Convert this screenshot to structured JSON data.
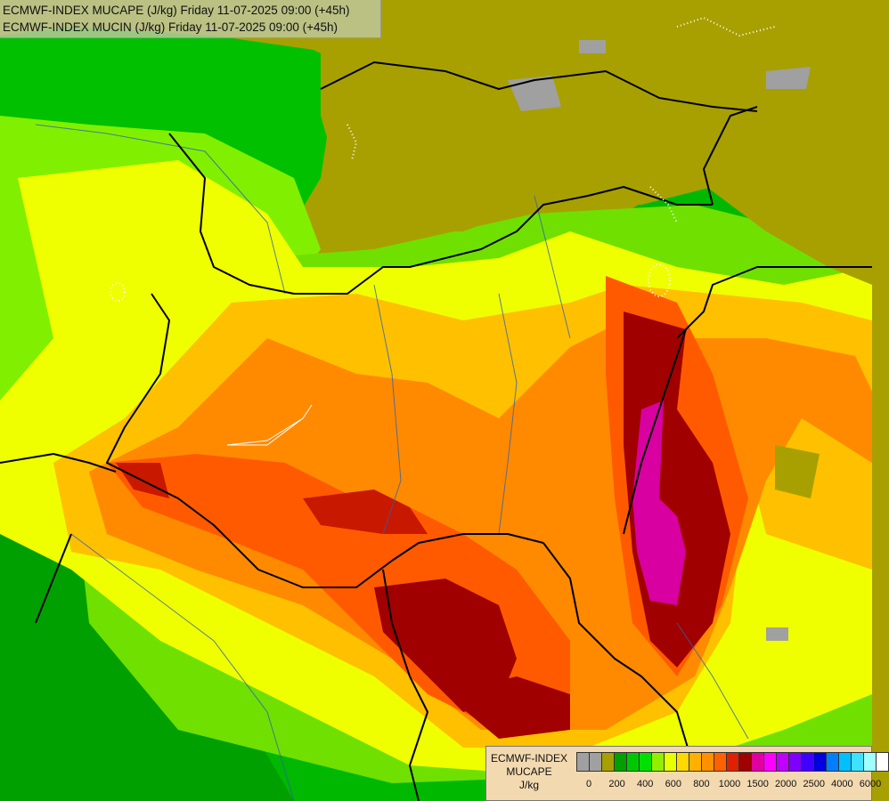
{
  "header": {
    "line1": "ECMWF-INDEX MUCAPE (J/kg) Friday 11-07-2025 09:00 (+45h)",
    "line2": "ECMWF-INDEX MUCIN (J/kg) Friday 11-07-2025 09:00 (+45h)"
  },
  "legend": {
    "title_lines": [
      "ECMWF-INDEX",
      "MUCAPE",
      "J/kg"
    ],
    "colors": [
      "#a0a0a0",
      "#a0a0a0",
      "#a8a000",
      "#00a000",
      "#00c800",
      "#00e000",
      "#90f000",
      "#e8ff00",
      "#ffd800",
      "#ffb000",
      "#ff9000",
      "#ff6000",
      "#e02000",
      "#a00000",
      "#e000a0",
      "#ff00ff",
      "#c000ff",
      "#8000ff",
      "#4000ff",
      "#0000e0",
      "#0080ff",
      "#00c0ff",
      "#40e0ff",
      "#a0ffff",
      "#ffffff"
    ],
    "tick_labels": [
      "0",
      "200",
      "400",
      "600",
      "800",
      "1000",
      "1500",
      "2000",
      "2500",
      "4000",
      "6000"
    ]
  }
}
